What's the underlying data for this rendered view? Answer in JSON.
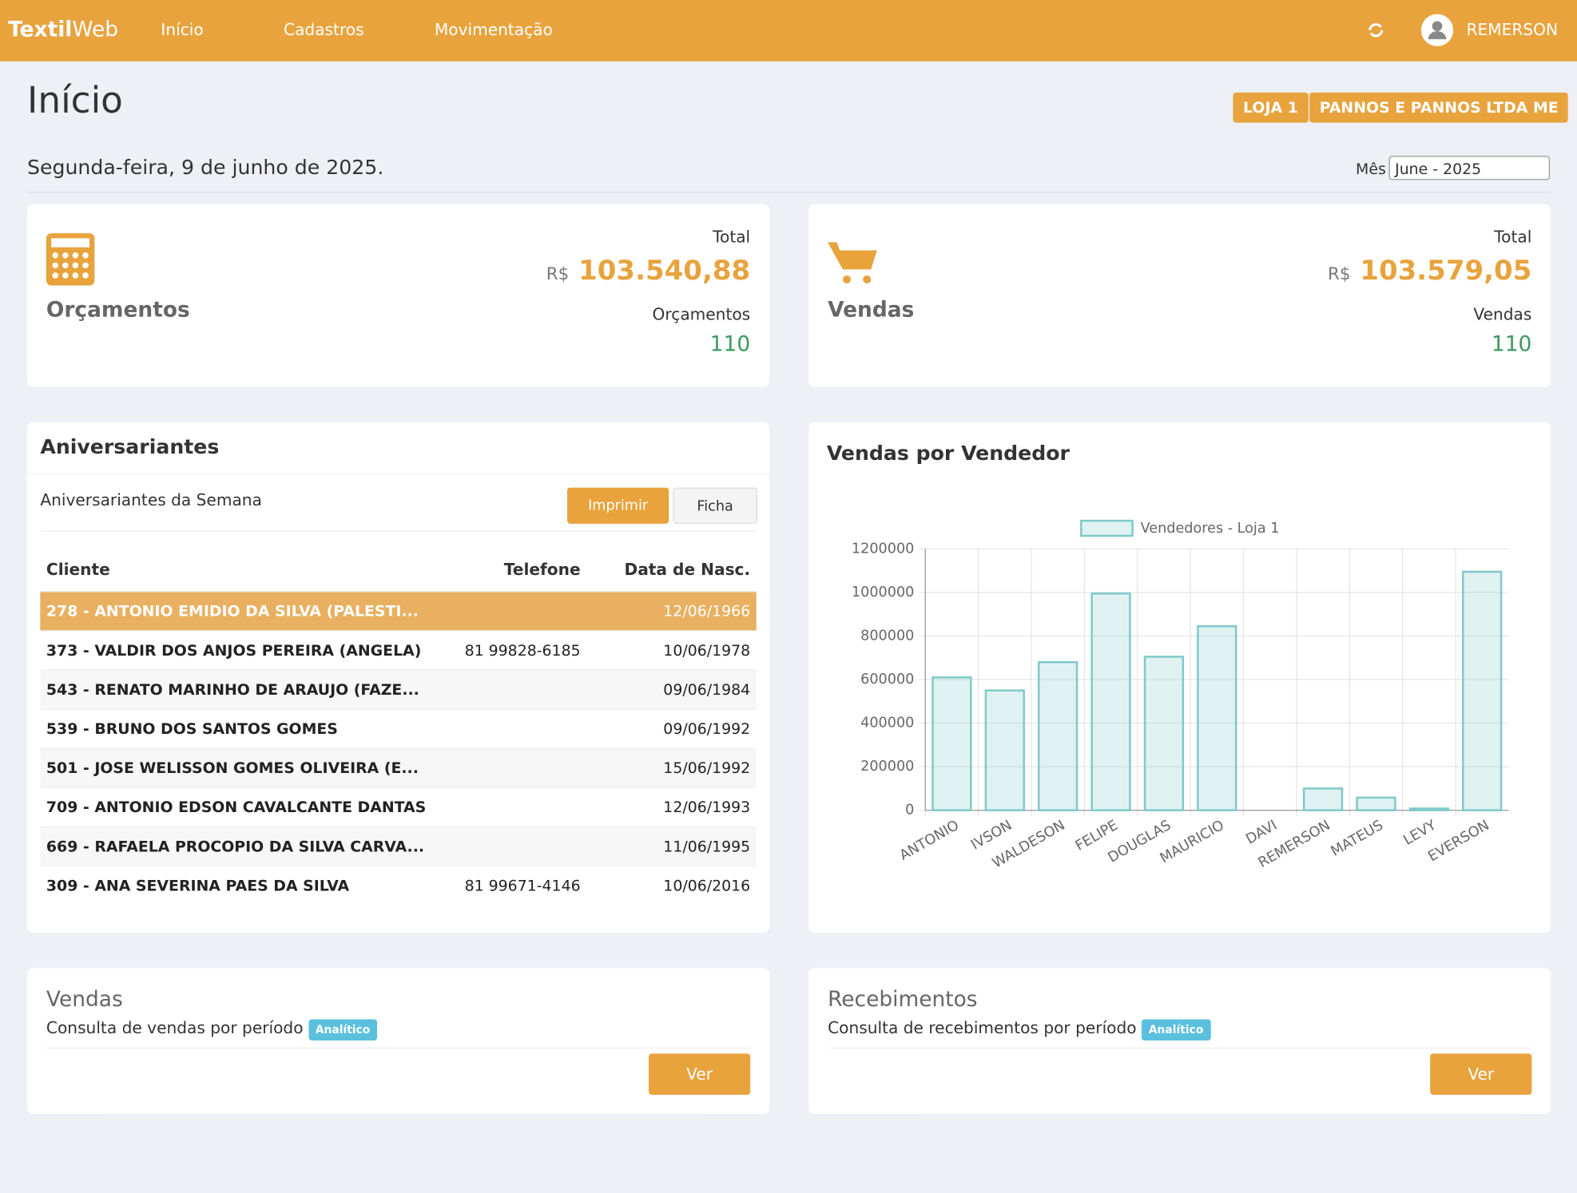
{
  "navbar": {
    "brand_a": "Textil",
    "brand_b": "Web",
    "items": [
      "Início",
      "Cadastros",
      "Movimentação"
    ],
    "user": "REMERSON"
  },
  "header": {
    "title": "Início",
    "badges": [
      "LOJA 1",
      "PANNOS E PANNOS LTDA ME"
    ],
    "date": "Segunda-feira, 9 de junho de 2025.",
    "month_label": "Mês",
    "month_value": "June - 2025"
  },
  "summary": [
    {
      "title": "Orçamentos",
      "total_label": "Total",
      "currency": "R$",
      "total": "103.540,88",
      "count_label": "Orçamentos",
      "count": 110
    },
    {
      "title": "Vendas",
      "total_label": "Total",
      "currency": "R$",
      "total": "103.579,05",
      "count_label": "Vendas",
      "count": 110
    }
  ],
  "birthdays": {
    "title": "Aniversariantes",
    "subtitle": "Aniversariantes da Semana",
    "buttons": [
      "Imprimir",
      "Ficha"
    ],
    "columns": [
      "Cliente",
      "Telefone",
      "Data de Nasc."
    ],
    "rows": [
      {
        "client": "278 - ANTONIO EMIDIO DA SILVA (PALESTI...",
        "birth": "12/06/1966"
      },
      {
        "client": "373 - VALDIR DOS ANJOS PEREIRA (ANGELA)",
        "phone": "81 99828-6185",
        "birth": "10/06/1978"
      },
      {
        "client": "543 - RENATO MARINHO DE ARAUJO (FAZE...",
        "birth": "09/06/1984"
      },
      {
        "client": "539 - BRUNO DOS SANTOS GOMES",
        "birth": "09/06/1992"
      },
      {
        "client": "501 - JOSE WELISSON GOMES OLIVEIRA (E...",
        "birth": "15/06/1992"
      },
      {
        "client": "709 - ANTONIO EDSON CAVALCANTE DANTAS",
        "birth": "12/06/1993"
      },
      {
        "client": "669 - RAFAELA PROCOPIO DA SILVA CARVA...",
        "birth": "11/06/1995"
      },
      {
        "client": "309 - ANA SEVERINA PAES DA SILVA",
        "phone": "81 99671-4146",
        "birth": "10/06/2016"
      }
    ]
  },
  "chart_data": {
    "type": "bar",
    "title": "Vendas por Vendedor",
    "categories": [
      "ANTONIO",
      "IVSON",
      "WALDESON",
      "FELIPE",
      "DOUGLAS",
      "MAURICIO",
      "DAVI",
      "REMERSON",
      "MATEUS",
      "LEVY",
      "EVERSON"
    ],
    "series": [
      {
        "name": "Vendedores - Loja 1",
        "color": "#7fcac9",
        "values": [
          610000,
          550000,
          680000,
          995000,
          705000,
          845000,
          0,
          100000,
          58000,
          8000,
          1095000
        ]
      }
    ],
    "ylim": [
      0,
      1200000
    ],
    "yticks": [
      0,
      200000,
      400000,
      600000,
      800000,
      1000000,
      1200000
    ],
    "grid": true
  },
  "reports": [
    {
      "title": "Vendas",
      "description": "Consulta de vendas por período",
      "badge": "Analítico",
      "button": "Ver"
    },
    {
      "title": "Recebimentos",
      "description": "Consulta de recebimentos por período",
      "badge": "Analítico",
      "button": "Ver"
    }
  ]
}
